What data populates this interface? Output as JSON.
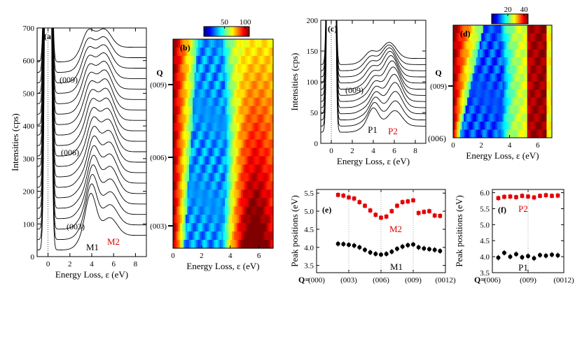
{
  "chart_data": [
    {
      "panel": "(a)",
      "type": "line",
      "title": "",
      "xlabel": "Energy Loss, ε (eV)",
      "ylabel": "Intensities (cps)",
      "xlim": [
        -1,
        9
      ],
      "ylim": [
        0,
        700
      ],
      "xticks": [
        "0",
        "2",
        "4",
        "6",
        "8"
      ],
      "yticks": [
        "0",
        "100",
        "200",
        "300",
        "400",
        "500",
        "600",
        "700"
      ],
      "series_count": 19,
      "offset_step": 32,
      "labels": [
        "(009)",
        "(006)",
        "(003)"
      ],
      "label_curve_index": [
        12,
        6,
        0
      ],
      "peaks": {
        "M1": 3.9,
        "M2": 5.4
      },
      "annotations": [
        {
          "text": "M1",
          "color": "#000000"
        },
        {
          "text": "M2",
          "color": "#e00000"
        }
      ]
    },
    {
      "panel": "(b)",
      "type": "heatmap",
      "xlabel": "Energy Loss, ε (eV)",
      "xlim": [
        0,
        7
      ],
      "xticks": [
        "0",
        "2",
        "4",
        "6"
      ],
      "colorbar_ticks": [
        "50",
        "100"
      ],
      "colorbar_range": [
        0,
        110
      ],
      "ylabel": "Q",
      "y_ticks": [
        "(009)",
        "(006)",
        "(003)"
      ],
      "rows": 25
    },
    {
      "panel": "(c)",
      "type": "line",
      "xlabel": "Energy Loss, ε (eV)",
      "ylabel": "Intensities (cps)",
      "xlim": [
        -1,
        9
      ],
      "ylim": [
        0,
        200
      ],
      "xticks": [
        "0",
        "2",
        "4",
        "6",
        "8"
      ],
      "yticks": [
        "0",
        "50",
        "100",
        "150",
        "200"
      ],
      "series_count": 12,
      "offset_step": 10,
      "labels": [
        "(009)",
        "(006)"
      ],
      "peaks": {
        "P1": 4.0,
        "P2": 5.8
      },
      "annotations": [
        {
          "text": "P1",
          "color": "#000000"
        },
        {
          "text": "P2",
          "color": "#e00000"
        }
      ]
    },
    {
      "panel": "(d)",
      "type": "heatmap",
      "xlabel": "Energy Loss, ε (eV)",
      "xlim": [
        0,
        7
      ],
      "xticks": [
        "0",
        "2",
        "4",
        "6"
      ],
      "colorbar_ticks": [
        "20",
        "40"
      ],
      "colorbar_range": [
        0,
        45
      ],
      "ylabel": "Q",
      "y_ticks": [
        "(009)"
      ],
      "rows": 14
    },
    {
      "panel": "(e)",
      "type": "scatter",
      "ylabel": "Peak positions (eV)",
      "ylim": [
        3.3,
        5.6
      ],
      "yticks": [
        "3.5",
        "4.0",
        "4.5",
        "5.0",
        "5.5"
      ],
      "xlim": [
        0,
        12
      ],
      "xlabel_prefix": "Q=",
      "xticks": [
        "(000)",
        "(003)",
        "(006)",
        "(009)",
        "(0012)"
      ],
      "series": [
        {
          "name": "M2",
          "color": "#e00000",
          "x": [
            2,
            2.5,
            3,
            3.5,
            4,
            4.5,
            5,
            5.5,
            6,
            6.5,
            7,
            7.5,
            8,
            8.5,
            9,
            9.5,
            10,
            10.5,
            11,
            11.5
          ],
          "y": [
            5.45,
            5.43,
            5.38,
            5.35,
            5.25,
            5.15,
            5.02,
            4.9,
            4.82,
            4.85,
            5.0,
            5.15,
            5.25,
            5.27,
            5.3,
            4.95,
            4.98,
            5.0,
            4.88,
            4.87
          ]
        },
        {
          "name": "M1",
          "color": "#000000",
          "x": [
            2,
            2.5,
            3,
            3.5,
            4,
            4.5,
            5,
            5.5,
            6,
            6.5,
            7,
            7.5,
            8,
            8.5,
            9,
            9.5,
            10,
            10.5,
            11,
            11.5
          ],
          "y": [
            4.1,
            4.09,
            4.07,
            4.05,
            4.0,
            3.93,
            3.86,
            3.82,
            3.8,
            3.82,
            3.88,
            3.96,
            4.02,
            4.06,
            4.08,
            4.0,
            3.97,
            3.95,
            3.93,
            3.9
          ]
        }
      ]
    },
    {
      "panel": "(f)",
      "type": "scatter",
      "ylabel": "Peak positions (eV)",
      "ylim": [
        3.5,
        6.1
      ],
      "yticks": [
        "3.5",
        "4.0",
        "4.5",
        "5.0",
        "5.5",
        "6.0"
      ],
      "xlim": [
        6,
        12
      ],
      "xlabel_prefix": "Q=",
      "xticks": [
        "(006)",
        "(009)",
        "(0012)"
      ],
      "series": [
        {
          "name": "P2",
          "color": "#e00000",
          "x": [
            6.5,
            7,
            7.5,
            8,
            8.5,
            9,
            9.5,
            10,
            10.5,
            11,
            11.5
          ],
          "y": [
            5.83,
            5.87,
            5.88,
            5.86,
            5.9,
            5.88,
            5.85,
            5.9,
            5.92,
            5.9,
            5.91
          ]
        },
        {
          "name": "P1",
          "color": "#000000",
          "x": [
            6.5,
            7,
            7.5,
            8,
            8.5,
            9,
            9.5,
            10,
            10.5,
            11,
            11.5
          ],
          "y": [
            3.97,
            4.12,
            4.0,
            4.08,
            3.98,
            4.02,
            3.95,
            4.05,
            4.03,
            4.06,
            4.04
          ]
        }
      ]
    }
  ]
}
